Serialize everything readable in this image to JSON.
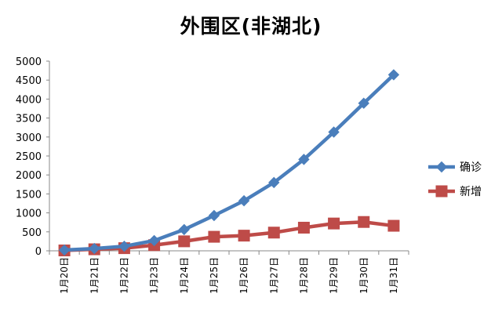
{
  "chart_data": {
    "type": "line",
    "title": "外围区(非湖北)",
    "categories": [
      "1月20日",
      "1月21日",
      "1月22日",
      "1月23日",
      "1月24日",
      "1月25日",
      "1月26日",
      "1月27日",
      "1月28日",
      "1月29日",
      "1月30日",
      "1月31日"
    ],
    "ylim": [
      0,
      5000
    ],
    "yticks": [
      0,
      500,
      1000,
      1500,
      2000,
      2500,
      3000,
      3500,
      4000,
      4500,
      5000
    ],
    "grid": false,
    "legend_position": "right",
    "series": [
      {
        "name": "确诊",
        "color": "#4a7ebb",
        "marker": "diamond",
        "values": [
          20,
          60,
          120,
          270,
          560,
          930,
          1320,
          1800,
          2410,
          3130,
          3890,
          4640
        ]
      },
      {
        "name": "新增",
        "color": "#be4b48",
        "marker": "square",
        "values": [
          10,
          40,
          70,
          150,
          250,
          370,
          400,
          480,
          610,
          720,
          760,
          660
        ]
      }
    ]
  }
}
